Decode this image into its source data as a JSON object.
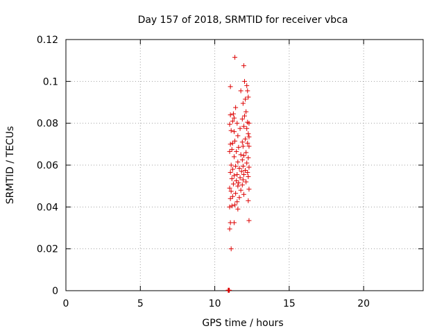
{
  "chart_data": {
    "type": "scatter",
    "title": "Day 157 of 2018, SRMTID for receiver vbca",
    "xlabel": "GPS time / hours",
    "ylabel": "SRMTID / TECUs",
    "xlim": [
      0,
      24
    ],
    "ylim": [
      0,
      0.12
    ],
    "xticks": [
      0,
      5,
      10,
      15,
      20
    ],
    "yticks": [
      0,
      0.02,
      0.04,
      0.06,
      0.08,
      0.1,
      0.12
    ],
    "ytick_labels": [
      "0",
      "0.02",
      "0.04",
      "0.06",
      "0.08",
      "0.1",
      "0.12"
    ],
    "grid": true,
    "marker": "+",
    "series": [
      {
        "name": "vbca",
        "color": "#dd0000",
        "points": [
          [
            11.35,
            0.1115
          ],
          [
            11.95,
            0.1075
          ],
          [
            12.0,
            0.1
          ],
          [
            12.15,
            0.098
          ],
          [
            12.2,
            0.0955
          ],
          [
            11.75,
            0.0955
          ],
          [
            11.05,
            0.0975
          ],
          [
            12.25,
            0.0925
          ],
          [
            12.05,
            0.0915
          ],
          [
            11.9,
            0.0895
          ],
          [
            11.4,
            0.0875
          ],
          [
            11.25,
            0.0845
          ],
          [
            11.05,
            0.084
          ],
          [
            11.3,
            0.0825
          ],
          [
            12.1,
            0.0855
          ],
          [
            12.0,
            0.0835
          ],
          [
            11.85,
            0.082
          ],
          [
            11.2,
            0.081
          ],
          [
            12.2,
            0.0805
          ],
          [
            12.3,
            0.08
          ],
          [
            11.5,
            0.08
          ],
          [
            11.0,
            0.0795
          ],
          [
            11.95,
            0.0785
          ],
          [
            11.7,
            0.0775
          ],
          [
            12.15,
            0.0775
          ],
          [
            11.1,
            0.0765
          ],
          [
            11.3,
            0.076
          ],
          [
            12.25,
            0.075
          ],
          [
            11.55,
            0.074
          ],
          [
            12.3,
            0.0735
          ],
          [
            12.05,
            0.0725
          ],
          [
            11.85,
            0.071
          ],
          [
            11.35,
            0.0715
          ],
          [
            11.2,
            0.0705
          ],
          [
            11.05,
            0.07
          ],
          [
            12.2,
            0.0705
          ],
          [
            11.9,
            0.069
          ],
          [
            12.3,
            0.069
          ],
          [
            11.6,
            0.0685
          ],
          [
            11.15,
            0.0675
          ],
          [
            11.0,
            0.0665
          ],
          [
            11.45,
            0.0665
          ],
          [
            12.1,
            0.066
          ],
          [
            11.75,
            0.065
          ],
          [
            11.95,
            0.0645
          ],
          [
            11.3,
            0.064
          ],
          [
            12.25,
            0.0635
          ],
          [
            11.85,
            0.0625
          ],
          [
            11.55,
            0.0615
          ],
          [
            12.15,
            0.061
          ],
          [
            11.1,
            0.06
          ],
          [
            11.4,
            0.0595
          ],
          [
            11.9,
            0.0595
          ],
          [
            12.3,
            0.059
          ],
          [
            11.65,
            0.0585
          ],
          [
            11.2,
            0.058
          ],
          [
            12.05,
            0.0575
          ],
          [
            11.8,
            0.057
          ],
          [
            11.05,
            0.0565
          ],
          [
            12.2,
            0.0565
          ],
          [
            11.5,
            0.0555
          ],
          [
            11.95,
            0.0555
          ],
          [
            11.3,
            0.055
          ],
          [
            12.25,
            0.0545
          ],
          [
            11.7,
            0.054
          ],
          [
            11.15,
            0.0535
          ],
          [
            11.9,
            0.053
          ],
          [
            11.45,
            0.0525
          ],
          [
            12.1,
            0.052
          ],
          [
            11.6,
            0.0515
          ],
          [
            11.25,
            0.051
          ],
          [
            11.85,
            0.0505
          ],
          [
            11.55,
            0.05
          ],
          [
            11.0,
            0.049
          ],
          [
            12.3,
            0.0485
          ],
          [
            11.75,
            0.048
          ],
          [
            11.1,
            0.0475
          ],
          [
            11.4,
            0.0465
          ],
          [
            11.95,
            0.046
          ],
          [
            11.2,
            0.045
          ],
          [
            11.65,
            0.0445
          ],
          [
            11.05,
            0.044
          ],
          [
            12.25,
            0.043
          ],
          [
            11.5,
            0.0425
          ],
          [
            11.35,
            0.041
          ],
          [
            11.15,
            0.0405
          ],
          [
            11.0,
            0.04
          ],
          [
            11.55,
            0.039
          ],
          [
            11.05,
            0.0325
          ],
          [
            11.3,
            0.0325
          ],
          [
            12.3,
            0.0335
          ],
          [
            11.0,
            0.0295
          ],
          [
            11.1,
            0.02
          ],
          [
            10.9,
            0.0002
          ],
          [
            10.95,
            0.0002
          ],
          [
            10.98,
            0.0002
          ],
          [
            10.93,
            0.0002
          ],
          [
            10.91,
            0.0002
          ]
        ]
      }
    ]
  }
}
